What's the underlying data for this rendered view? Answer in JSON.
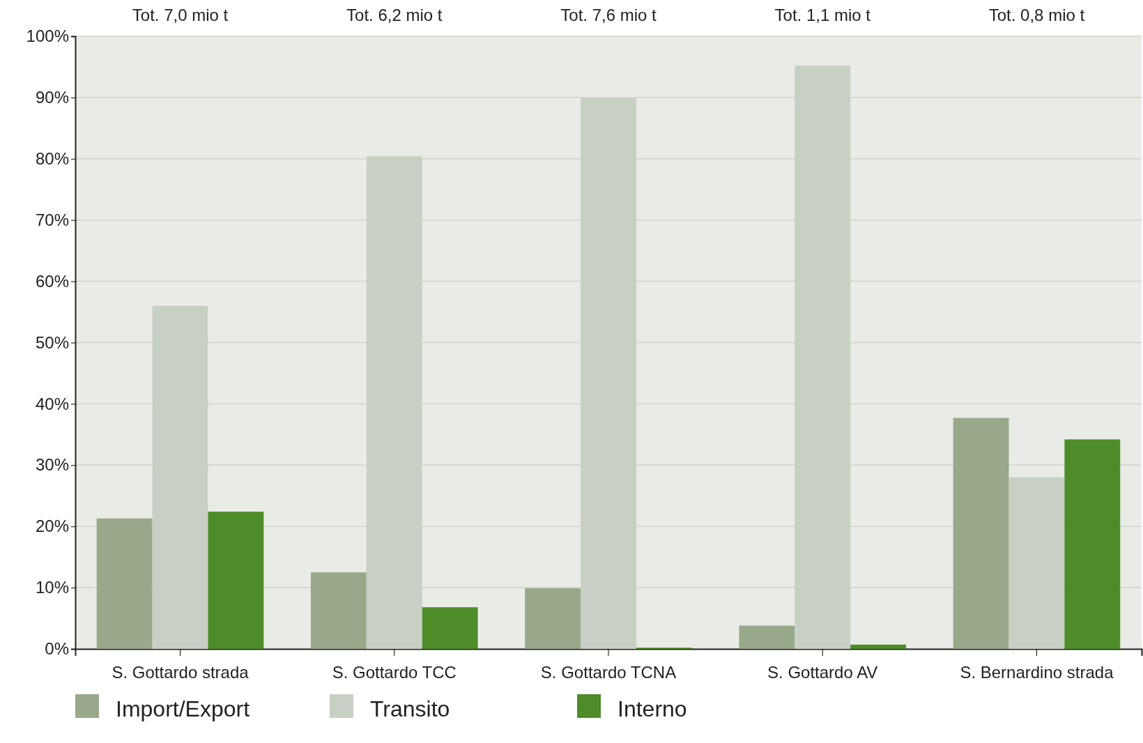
{
  "chart_data": {
    "type": "bar",
    "categories": [
      "S. Gottardo strada",
      "S. Gottardo TCC",
      "S. Gottardo TCNA",
      "S. Gottardo AV",
      "S. Bernardino strada"
    ],
    "series": [
      {
        "name": "Import/Export",
        "color": "#9aa88a",
        "values": [
          21.3,
          12.5,
          9.9,
          3.8,
          37.7
        ]
      },
      {
        "name": "Transito",
        "color": "#c8cfc4",
        "values": [
          56,
          80.4,
          89.9,
          95.2,
          28
        ]
      },
      {
        "name": "Interno",
        "color": "#4e8c2a",
        "values": [
          22.4,
          6.8,
          0.2,
          0.7,
          34.2
        ]
      }
    ],
    "ylim": [
      0,
      100
    ],
    "yticks": [
      {
        "value": 0,
        "label": "0%"
      },
      {
        "value": 10,
        "label": "10%"
      },
      {
        "value": 20,
        "label": "20%"
      },
      {
        "value": 30,
        "label": "30%"
      },
      {
        "value": 40,
        "label": "40%"
      },
      {
        "value": 50,
        "label": "50%"
      },
      {
        "value": 60,
        "label": "60%"
      },
      {
        "value": 70,
        "label": "70%"
      },
      {
        "value": 80,
        "label": "80%"
      },
      {
        "value": 90,
        "label": "90%"
      },
      {
        "value": 100,
        "label": "100%"
      }
    ],
    "grid": "y",
    "legend": "bottom",
    "annotations": [
      "Tot. 7,0 mio t",
      "Tot. 6,2 mio t",
      "Tot. 7,6 mio t",
      "Tot. 1,1 mio t",
      "Tot. 0,8 mio t"
    ]
  }
}
